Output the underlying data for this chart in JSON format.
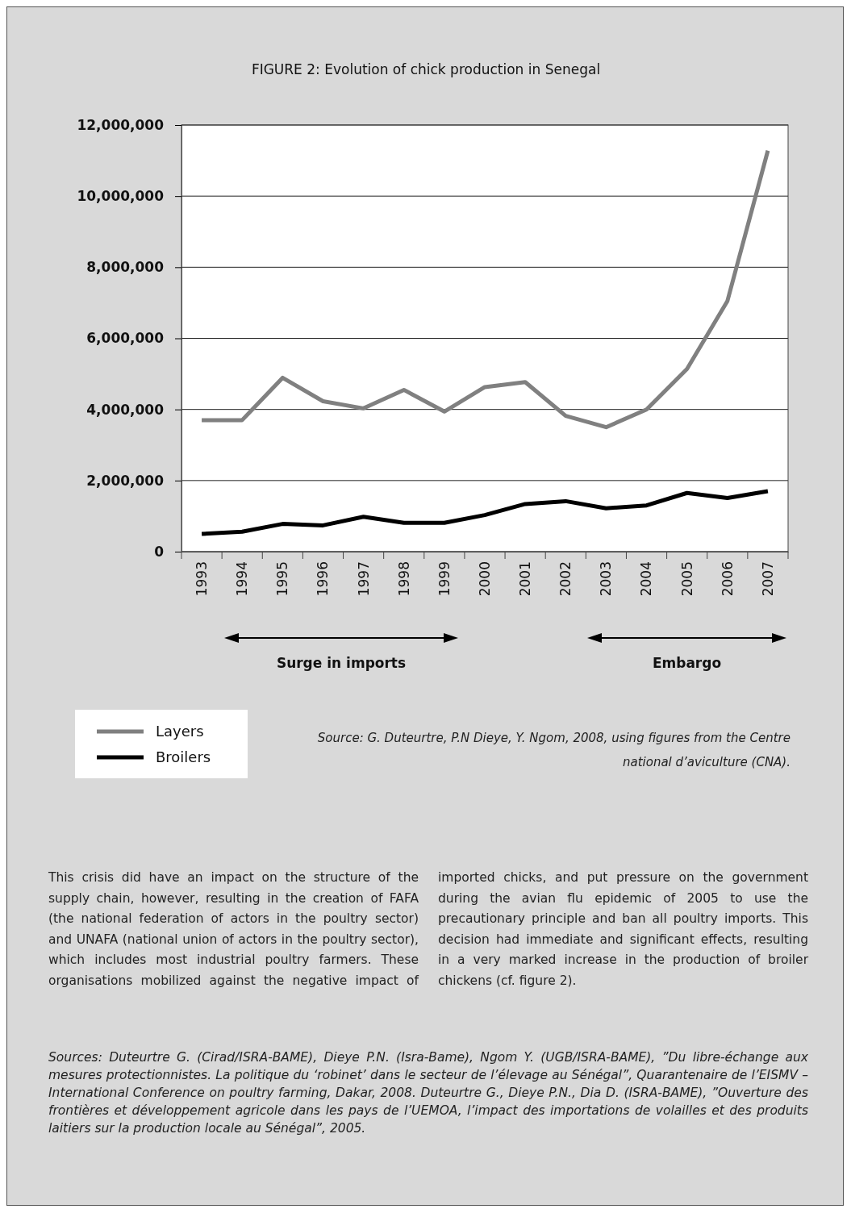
{
  "chart_data": {
    "type": "line",
    "title": "FIGURE 2: Evolution of chick production in Senegal",
    "categories": [
      "1993",
      "1994",
      "1995",
      "1996",
      "1997",
      "1998",
      "1999",
      "2000",
      "2001",
      "2002",
      "2003",
      "2004",
      "2005",
      "2006",
      "2007"
    ],
    "series": [
      {
        "name": "Layers",
        "color": "#808080",
        "values": [
          3700000,
          3700000,
          4890000,
          4230000,
          4030000,
          4550000,
          3940000,
          4630000,
          4770000,
          3820000,
          3500000,
          4000000,
          5140000,
          7050000,
          11280000
        ]
      },
      {
        "name": "Broilers",
        "color": "#000000",
        "values": [
          500000,
          560000,
          780000,
          740000,
          980000,
          810000,
          810000,
          1030000,
          1340000,
          1420000,
          1220000,
          1300000,
          1650000,
          1510000,
          1700000
        ]
      }
    ],
    "ylim": [
      0,
      12000000
    ],
    "yticks": [
      {
        "value": 0,
        "label": "0"
      },
      {
        "value": 2000000,
        "label": "2,000,000"
      },
      {
        "value": 4000000,
        "label": "4,000,000"
      },
      {
        "value": 6000000,
        "label": "6,000,000"
      },
      {
        "value": 8000000,
        "label": "8,000,000"
      },
      {
        "value": 10000000,
        "label": "10,000,000"
      },
      {
        "value": 12000000,
        "label": "12,000,000"
      }
    ],
    "grid": "y",
    "legend": "bottom left",
    "annotations": [
      "Surge in imports",
      "Embargo",
      "Source: G. Duteurtre, P.N Dieye, Y. Ngom, 2008, using figures from the Centre national d’aviculture (CNA).",
      "This crisis did have an impact on the structure of the supply chain, however, resulting in the creation of FAFA (the national federation of actors in the poultry sector) and UNAFA (national union of actors in the poultry sector), which includes most industrial poultry farmers. These organisations mobilized against the negative impact of imported chicks, and put pressure on the government during the avian flu epidemic of 2005 to use the precautionary principle and ban all poultry imports. This decision had immediate and significant effects, resulting in a very marked increase in the production of broiler chickens (cf. figure 2).",
      "Sources: Duteurtre G. (Cirad/ISRA-BAME), Dieye P.N. (Isra-Bame), Ngom Y. (UGB/ISRA-BAME), ”Du libre-échange aux mesures protectionnistes. La politique du ‘robinet’ dans le secteur de l’élevage au Sénégal”, Quarantenaire de l’EISMV – International Conference on poultry farming, Dakar, 2008. Duteurtre G., Dieye P.N., Dia D. (ISRA-BAME), ”Ouverture des frontières et développement agricole dans les pays de l’UEMOA, l’impact des importations de volailles et des produits laitiers sur la production locale au Sénégal”, 2005."
    ]
  }
}
